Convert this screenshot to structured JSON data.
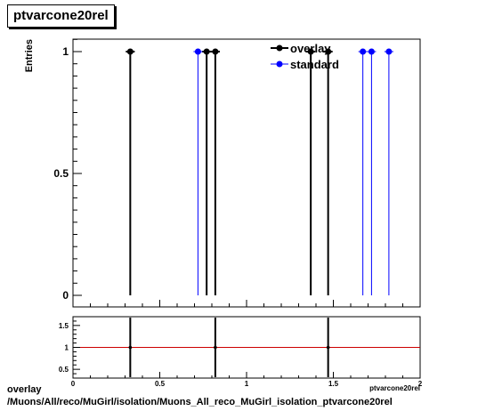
{
  "title": "ptvarcone20rel",
  "footer": {
    "line1": "overlay",
    "line2": "/Muons/All/reco/MuGirl/isolation/Muons_All_reco_MuGirl_isolation_ptvarcone20rel"
  },
  "colors": {
    "overlay": "#000000",
    "standard": "#0000ff",
    "ratio_line": "#cc0000"
  },
  "chart_data": [
    {
      "type": "scatter",
      "title": "ptvarcone20rel",
      "xlabel": "ptvarcone20rel",
      "ylabel": "Entries",
      "xlim": [
        0,
        2
      ],
      "ylim": [
        0,
        1.05
      ],
      "yticks": [
        "0",
        "0.5",
        "1"
      ],
      "legend": "top-right",
      "series": [
        {
          "name": "overlay",
          "color": "#000000",
          "x": [
            0.33,
            0.77,
            0.82,
            1.37,
            1.47
          ],
          "y": [
            1,
            1,
            1,
            1,
            1
          ]
        },
        {
          "name": "standard",
          "color": "#0000ff",
          "x": [
            0.72,
            1.67,
            1.72,
            1.82
          ],
          "y": [
            1,
            1,
            1,
            1
          ]
        }
      ]
    },
    {
      "type": "scatter",
      "xlabel": "ptvarcone20rel",
      "xlim": [
        0,
        2
      ],
      "ylim": [
        0.3,
        1.7
      ],
      "xticks": [
        "0",
        "0.5",
        "1",
        "1.5",
        "2"
      ],
      "yticks": [
        "0.5",
        "1",
        "1.5"
      ],
      "reference_line": 1,
      "series": [
        {
          "color": "#000000",
          "x": [
            0.33,
            0.82,
            1.47
          ],
          "y": [
            1,
            1,
            1
          ]
        }
      ]
    }
  ]
}
